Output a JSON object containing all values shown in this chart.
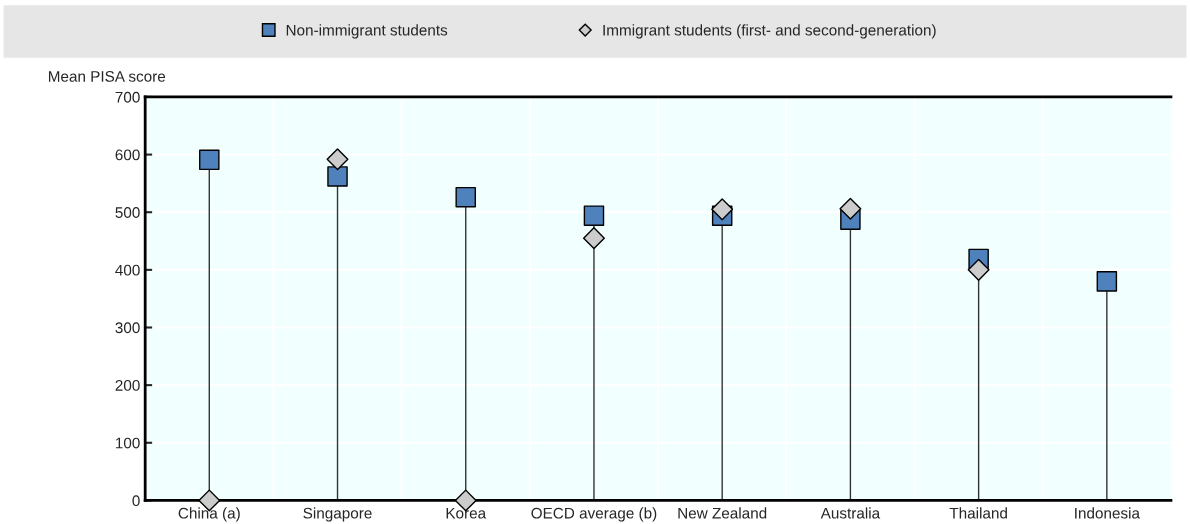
{
  "chart_data": {
    "type": "lollipop",
    "ylabel": "Mean PISA score",
    "categories": [
      "China (a)",
      "Singapore",
      "Korea",
      "OECD average (b)",
      "New Zealand",
      "Australia",
      "Thailand",
      "Indonesia"
    ],
    "series": [
      {
        "name": "Non-immigrant students",
        "marker": "square",
        "color": "#4f81bd",
        "values": [
          591,
          562,
          526,
          494,
          494,
          487,
          419,
          380
        ]
      },
      {
        "name": "Immigrant students (first- and second-generation)",
        "type": "scatter",
        "marker": "diamond",
        "color": "#cccccc",
        "values": [
          0,
          592,
          0,
          455,
          505,
          506,
          400,
          null
        ]
      }
    ],
    "ylim": [
      0,
      700
    ],
    "yticks": [
      0,
      100,
      200,
      300,
      400,
      500,
      600,
      700
    ],
    "grid": true,
    "legend": "top"
  }
}
